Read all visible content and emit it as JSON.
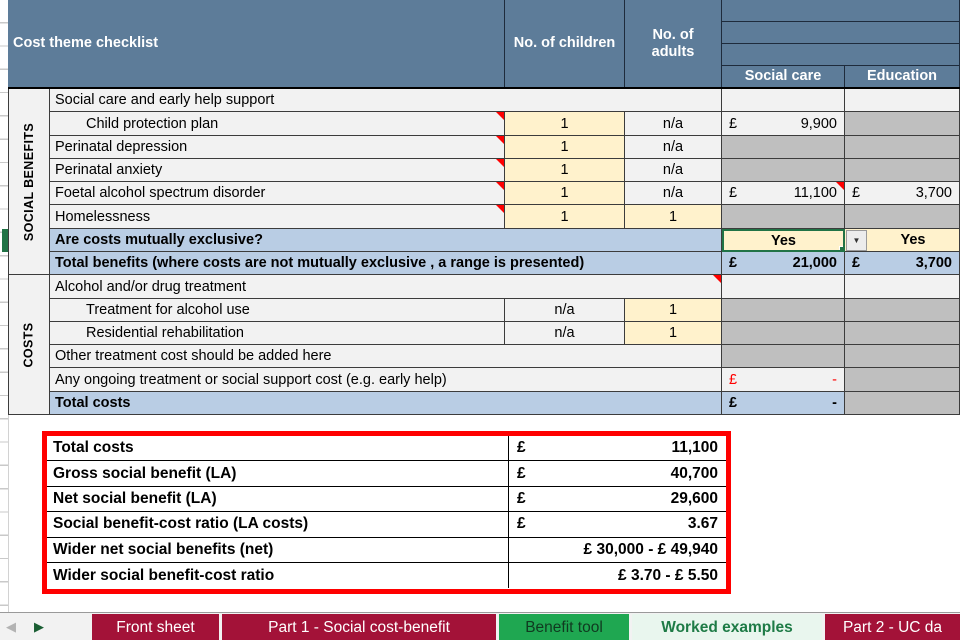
{
  "colors": {
    "header_blue": "#5D7C99",
    "band_blue": "#B9CDE4",
    "input_cream": "#FFF2CC",
    "na_gray": "#BFBFBF",
    "cell_light": "#F2F2F2",
    "tab_maroon": "#A31238",
    "tab_green": "#1FA751",
    "active_tab_bg": "#E9F6EE",
    "active_tab_text": "#1E7B46",
    "selection_green": "#217346",
    "alert_red": "#FF0000"
  },
  "icons": {
    "prev_sheet": "◀",
    "next_sheet": "▶",
    "dropdown_arrow": "▼"
  },
  "header": {
    "title": "Cost theme checklist",
    "children_col": "No. of children",
    "adults_col": "No. of adults",
    "social_col": "Social care",
    "education_col": "Education"
  },
  "sections": [
    {
      "name": "SOCIAL BENEFITS",
      "rows": [
        {
          "label": "Social care and early help support",
          "merged": true,
          "social": {
            "bg": "light"
          },
          "education": {
            "bg": "light"
          }
        },
        {
          "label": "Child protection plan",
          "indent": true,
          "comment": true,
          "children": {
            "text": "1",
            "bg": "cream"
          },
          "adults": {
            "text": "n/a",
            "bg": "light"
          },
          "social": {
            "currency": "£",
            "amount": "9,900",
            "bg": "light"
          },
          "education": {
            "bg": "gray"
          }
        },
        {
          "label": "Perinatal depression",
          "comment": true,
          "children": {
            "text": "1",
            "bg": "cream"
          },
          "adults": {
            "text": "n/a",
            "bg": "light"
          },
          "social": {
            "bg": "gray"
          },
          "education": {
            "bg": "gray"
          }
        },
        {
          "label": "Perinatal anxiety",
          "comment": true,
          "children": {
            "text": "1",
            "bg": "cream"
          },
          "adults": {
            "text": "n/a",
            "bg": "light"
          },
          "social": {
            "bg": "gray"
          },
          "education": {
            "bg": "gray"
          }
        },
        {
          "label": "Foetal alcohol spectrum disorder",
          "comment": true,
          "children": {
            "text": "1",
            "bg": "cream"
          },
          "adults": {
            "text": "n/a",
            "bg": "light"
          },
          "social": {
            "currency": "£",
            "amount": "11,100",
            "bg": "light",
            "comment": true
          },
          "education": {
            "currency": "£",
            "amount": "3,700",
            "bg": "light"
          }
        },
        {
          "label": "Homelessness",
          "comment": true,
          "children": {
            "text": "1",
            "bg": "cream"
          },
          "adults": {
            "text": "1",
            "bg": "cream"
          },
          "social": {
            "bg": "gray"
          },
          "education": {
            "bg": "gray"
          }
        },
        {
          "label": "Are costs mutually exclusive?",
          "bold": true,
          "merged": true,
          "label_bg": "blue",
          "social": {
            "text": "Yes",
            "bg": "cream",
            "bold": true,
            "selected": true,
            "dropdown": true
          },
          "education": {
            "text": "Yes",
            "bg": "cream",
            "bold": true,
            "pad_left": 22
          }
        },
        {
          "label": "Total benefits (where costs are not mutually exclusive , a range is presented)",
          "bold": true,
          "merged": true,
          "label_bg": "blue",
          "social": {
            "currency": "£",
            "amount": "21,000",
            "bg": "blue",
            "bold": true
          },
          "education": {
            "currency": "£",
            "amount": "3,700",
            "bg": "blue",
            "bold": true
          }
        }
      ]
    },
    {
      "name": "COSTS",
      "rows": [
        {
          "label": "Alcohol and/or drug treatment",
          "merged": true,
          "comment": true,
          "social": {
            "bg": "light"
          },
          "education": {
            "bg": "light"
          }
        },
        {
          "label": "Treatment for alcohol use",
          "indent": true,
          "children": {
            "text": "n/a",
            "bg": "light"
          },
          "adults": {
            "text": "1",
            "bg": "cream"
          },
          "social": {
            "bg": "gray"
          },
          "education": {
            "bg": "gray"
          }
        },
        {
          "label": "Residential rehabilitation",
          "indent": true,
          "children": {
            "text": "n/a",
            "bg": "light"
          },
          "adults": {
            "text": "1",
            "bg": "cream"
          },
          "social": {
            "bg": "gray"
          },
          "education": {
            "bg": "gray"
          }
        },
        {
          "label": "Other treatment cost should be added here",
          "merged": true,
          "social": {
            "bg": "gray"
          },
          "education": {
            "bg": "gray"
          }
        },
        {
          "label": "Any ongoing treatment or social support cost (e.g. early help)",
          "merged": true,
          "social": {
            "currency": "£",
            "amount": "-",
            "bg": "light",
            "red": true
          },
          "education": {
            "bg": "gray"
          }
        },
        {
          "label": "Total costs",
          "bold": true,
          "merged": true,
          "label_bg": "blue",
          "social": {
            "currency": "£",
            "amount": "-",
            "bg": "blue",
            "bold": true
          },
          "education": {
            "bg": "gray"
          }
        }
      ]
    }
  ],
  "summary": {
    "rows": [
      {
        "label": "Total costs",
        "currency": "£",
        "value": "11,100"
      },
      {
        "label": "Gross social benefit (LA)",
        "currency": "£",
        "value": "40,700"
      },
      {
        "label": "Net social benefit (LA)",
        "currency": "£",
        "value": "29,600"
      },
      {
        "label": "Social benefit-cost ratio (LA costs)",
        "currency": "£",
        "value": "3.67"
      },
      {
        "label": "Wider net social benefits (net)",
        "currency": "",
        "value": "£ 30,000 - £ 49,940"
      },
      {
        "label": "Wider social benefit-cost ratio",
        "currency": "",
        "value": "£ 3.70 - £ 5.50"
      }
    ]
  },
  "tabs": {
    "items": [
      {
        "label": "Front sheet",
        "style": "maroon"
      },
      {
        "label": "Part 1 - Social cost-benefit",
        "style": "maroon"
      },
      {
        "label": "Benefit tool",
        "style": "green"
      },
      {
        "label": "Worked examples",
        "style": "active"
      },
      {
        "label": "Part 2 - UC da",
        "style": "maroon"
      }
    ]
  }
}
